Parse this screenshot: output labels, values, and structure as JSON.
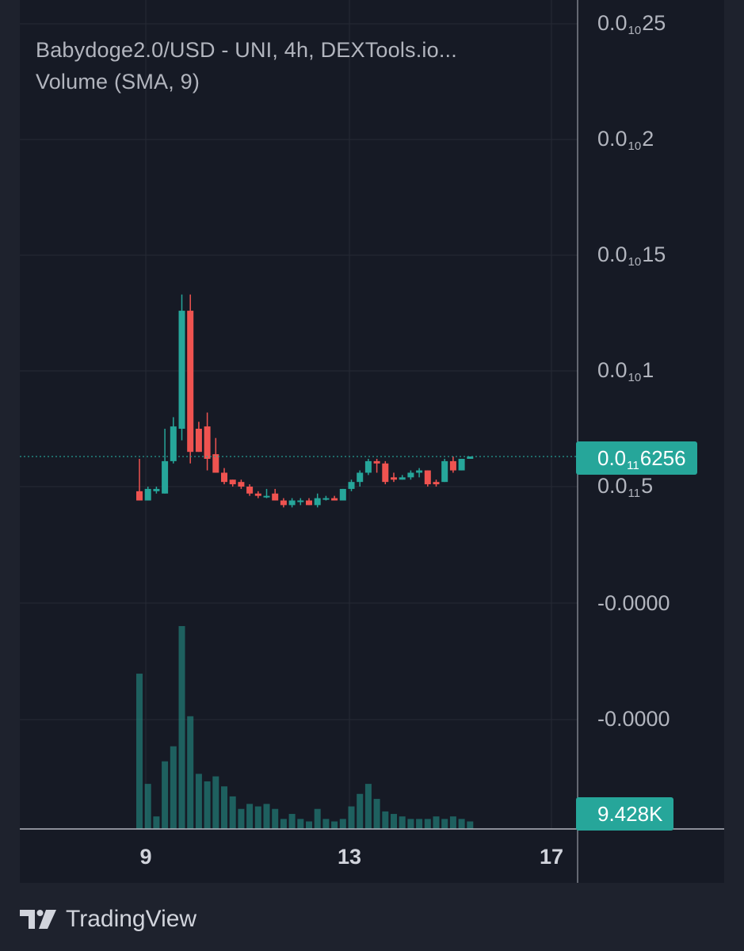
{
  "legend": {
    "title": "Babydoge2.0/USD - UNI, 4h, DEXTools.io...",
    "volume": "Volume (SMA, 9)"
  },
  "price_axis": [
    {
      "prefix": "0.0",
      "sub": "10",
      "suffix": "25"
    },
    {
      "prefix": "0.0",
      "sub": "10",
      "suffix": "2"
    },
    {
      "prefix": "0.0",
      "sub": "10",
      "suffix": "15"
    },
    {
      "prefix": "0.0",
      "sub": "10",
      "suffix": "1"
    },
    {
      "prefix": "0.0",
      "sub": "11",
      "suffix": "5"
    }
  ],
  "volume_axis": [
    "-0.0000",
    "-0.0000"
  ],
  "current_price": {
    "prefix": "0.0",
    "sub": "11",
    "suffix": "6256",
    "color": "#26a69a"
  },
  "current_volume": {
    "text": "9.428K",
    "color": "#26a69a"
  },
  "time_axis": [
    "9",
    "13",
    "17"
  ],
  "brand": {
    "name": "TradingView",
    "icon": "tradingview-logo-icon"
  },
  "colors": {
    "up": "#26a69a",
    "down": "#ef5350",
    "volume": "#26a69a"
  },
  "chart_data": {
    "type": "candlestick",
    "timeframe": "4h",
    "x_ticks": [
      "9",
      "13",
      "17"
    ],
    "candles": [
      {
        "o": 4.8e-11,
        "h": 6.2e-11,
        "l": 4.4e-11,
        "c": 4.4e-11
      },
      {
        "o": 4.4e-11,
        "h": 5e-11,
        "l": 4.4e-11,
        "c": 4.9e-11
      },
      {
        "o": 4.8e-11,
        "h": 5e-11,
        "l": 4.7e-11,
        "c": 4.9e-11
      },
      {
        "o": 4.7e-11,
        "h": 7.5e-11,
        "l": 4.7e-11,
        "c": 6.1e-11
      },
      {
        "o": 6.1e-11,
        "h": 8e-11,
        "l": 6e-11,
        "c": 7.6e-11
      },
      {
        "o": 7.5e-11,
        "h": 1.33e-10,
        "l": 7e-11,
        "c": 1.26e-10
      },
      {
        "o": 1.26e-10,
        "h": 1.33e-10,
        "l": 6e-11,
        "c": 6.5e-11
      },
      {
        "o": 7.5e-11,
        "h": 7.8e-11,
        "l": 6.5e-11,
        "c": 6.5e-11
      },
      {
        "o": 7.6e-11,
        "h": 8.2e-11,
        "l": 5.7e-11,
        "c": 6.2e-11
      },
      {
        "o": 6.4e-11,
        "h": 7.1e-11,
        "l": 5.6e-11,
        "c": 5.6e-11
      },
      {
        "o": 5.6e-11,
        "h": 5.8e-11,
        "l": 5.1e-11,
        "c": 5.2e-11
      },
      {
        "o": 5.3e-11,
        "h": 5.3e-11,
        "l": 5e-11,
        "c": 5.1e-11
      },
      {
        "o": 5.2e-11,
        "h": 5.3e-11,
        "l": 4.9e-11,
        "c": 5e-11
      },
      {
        "o": 5e-11,
        "h": 5.1e-11,
        "l": 4.6e-11,
        "c": 4.7e-11
      },
      {
        "o": 4.7e-11,
        "h": 4.8e-11,
        "l": 4.5e-11,
        "c": 4.6e-11
      },
      {
        "o": 4.6e-11,
        "h": 4.9e-11,
        "l": 4.5e-11,
        "c": 4.6e-11
      },
      {
        "o": 4.7e-11,
        "h": 4.9e-11,
        "l": 4.4e-11,
        "c": 4.4e-11
      },
      {
        "o": 4.4e-11,
        "h": 4.5e-11,
        "l": 4.1e-11,
        "c": 4.2e-11
      },
      {
        "o": 4.2e-11,
        "h": 4.5e-11,
        "l": 4.1e-11,
        "c": 4.4e-11
      },
      {
        "o": 4.4e-11,
        "h": 4.5e-11,
        "l": 4.2e-11,
        "c": 4.4e-11
      },
      {
        "o": 4.4e-11,
        "h": 4.5e-11,
        "l": 4.2e-11,
        "c": 4.2e-11
      },
      {
        "o": 4.2e-11,
        "h": 4.7e-11,
        "l": 4.1e-11,
        "c": 4.5e-11
      },
      {
        "o": 4.5e-11,
        "h": 4.6e-11,
        "l": 4.4e-11,
        "c": 4.5e-11
      },
      {
        "o": 4.5e-11,
        "h": 4.6e-11,
        "l": 4.4e-11,
        "c": 4.4e-11
      },
      {
        "o": 4.4e-11,
        "h": 4.9e-11,
        "l": 4.4e-11,
        "c": 4.9e-11
      },
      {
        "o": 4.9e-11,
        "h": 5.3e-11,
        "l": 4.8e-11,
        "c": 5.2e-11
      },
      {
        "o": 5.2e-11,
        "h": 5.7e-11,
        "l": 5e-11,
        "c": 5.6e-11
      },
      {
        "o": 5.6e-11,
        "h": 6.2e-11,
        "l": 5.5e-11,
        "c": 6.1e-11
      },
      {
        "o": 6.1e-11,
        "h": 6.2e-11,
        "l": 5.6e-11,
        "c": 6e-11
      },
      {
        "o": 6e-11,
        "h": 6.1e-11,
        "l": 5.1e-11,
        "c": 5.2e-11
      },
      {
        "o": 5.4e-11,
        "h": 5.6e-11,
        "l": 5.2e-11,
        "c": 5.3e-11
      },
      {
        "o": 5.3e-11,
        "h": 5.5e-11,
        "l": 5.3e-11,
        "c": 5.4e-11
      },
      {
        "o": 5.4e-11,
        "h": 5.7e-11,
        "l": 5.3e-11,
        "c": 5.6e-11
      },
      {
        "o": 5.6e-11,
        "h": 5.8e-11,
        "l": 5.4e-11,
        "c": 5.7e-11
      },
      {
        "o": 5.7e-11,
        "h": 5.7e-11,
        "l": 5e-11,
        "c": 5.1e-11
      },
      {
        "o": 5.2e-11,
        "h": 5.3e-11,
        "l": 5e-11,
        "c": 5.1e-11
      },
      {
        "o": 5.2e-11,
        "h": 6.2e-11,
        "l": 5.2e-11,
        "c": 6.1e-11
      },
      {
        "o": 6.1e-11,
        "h": 6.3e-11,
        "l": 5.6e-11,
        "c": 5.7e-11
      },
      {
        "o": 5.7e-11,
        "h": 6.2e-11,
        "l": 5.7e-11,
        "c": 6.2e-11
      },
      {
        "o": 6.2e-11,
        "h": 6.3e-11,
        "l": 6.2e-11,
        "c": 6.3e-11
      }
    ],
    "volume": [
      0.62,
      0.18,
      0.05,
      0.27,
      0.33,
      0.81,
      0.45,
      0.22,
      0.19,
      0.21,
      0.17,
      0.13,
      0.08,
      0.1,
      0.09,
      0.1,
      0.08,
      0.04,
      0.06,
      0.04,
      0.03,
      0.08,
      0.04,
      0.03,
      0.04,
      0.09,
      0.14,
      0.18,
      0.12,
      0.07,
      0.06,
      0.05,
      0.04,
      0.04,
      0.04,
      0.05,
      0.04,
      0.05,
      0.04,
      0.03
    ]
  }
}
